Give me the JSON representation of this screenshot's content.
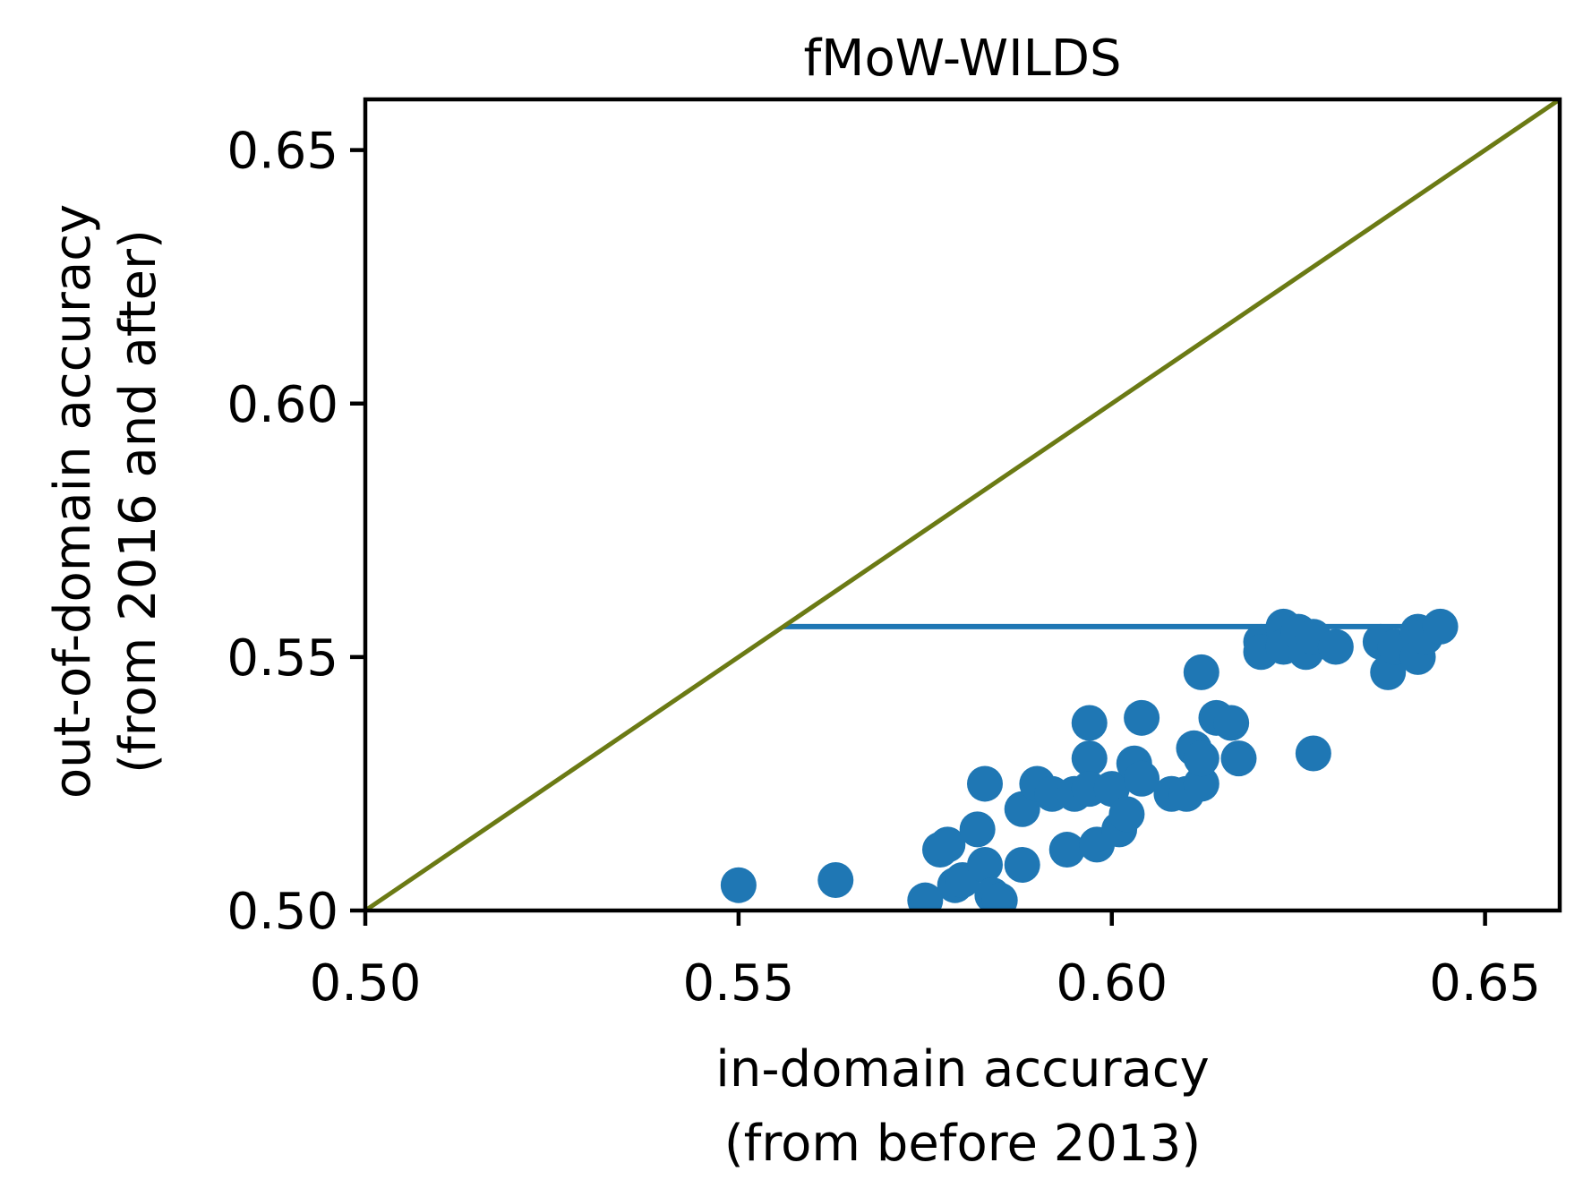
{
  "chart_data": {
    "type": "scatter",
    "title": "fMoW-WILDS",
    "xlabel": [
      "in-domain accuracy",
      "(from before 2013)"
    ],
    "ylabel": [
      "out-of-domain accuracy",
      "(from 2016 and after)"
    ],
    "xlim": [
      0.5,
      0.66
    ],
    "ylim": [
      0.5,
      0.66
    ],
    "xticks": [
      "0.50",
      "0.55",
      "0.60",
      "0.65"
    ],
    "yticks": [
      "0.50",
      "0.55",
      "0.60",
      "0.65"
    ],
    "grid": false,
    "colors": {
      "points": "#1f77b4",
      "diagonal": "#6b7a14",
      "gap_line": "#1f77b4"
    },
    "diagonal": {
      "x": [
        0.5,
        0.66
      ],
      "y": [
        0.5,
        0.66
      ]
    },
    "gap_line": {
      "x": [
        0.556,
        0.643
      ],
      "y": [
        0.556,
        0.556
      ]
    },
    "points": [
      {
        "x": 0.55,
        "y": 0.505
      },
      {
        "x": 0.563,
        "y": 0.506
      },
      {
        "x": 0.575,
        "y": 0.502
      },
      {
        "x": 0.577,
        "y": 0.512
      },
      {
        "x": 0.578,
        "y": 0.513
      },
      {
        "x": 0.579,
        "y": 0.505
      },
      {
        "x": 0.58,
        "y": 0.506
      },
      {
        "x": 0.582,
        "y": 0.516
      },
      {
        "x": 0.583,
        "y": 0.525
      },
      {
        "x": 0.583,
        "y": 0.509
      },
      {
        "x": 0.584,
        "y": 0.503
      },
      {
        "x": 0.585,
        "y": 0.502
      },
      {
        "x": 0.588,
        "y": 0.509
      },
      {
        "x": 0.588,
        "y": 0.52
      },
      {
        "x": 0.59,
        "y": 0.525
      },
      {
        "x": 0.592,
        "y": 0.523
      },
      {
        "x": 0.594,
        "y": 0.512
      },
      {
        "x": 0.595,
        "y": 0.523
      },
      {
        "x": 0.597,
        "y": 0.537
      },
      {
        "x": 0.597,
        "y": 0.53
      },
      {
        "x": 0.597,
        "y": 0.524
      },
      {
        "x": 0.598,
        "y": 0.513
      },
      {
        "x": 0.6,
        "y": 0.524
      },
      {
        "x": 0.601,
        "y": 0.516
      },
      {
        "x": 0.602,
        "y": 0.519
      },
      {
        "x": 0.603,
        "y": 0.529
      },
      {
        "x": 0.604,
        "y": 0.526
      },
      {
        "x": 0.604,
        "y": 0.538
      },
      {
        "x": 0.608,
        "y": 0.523
      },
      {
        "x": 0.61,
        "y": 0.523
      },
      {
        "x": 0.611,
        "y": 0.532
      },
      {
        "x": 0.612,
        "y": 0.525
      },
      {
        "x": 0.612,
        "y": 0.53
      },
      {
        "x": 0.612,
        "y": 0.547
      },
      {
        "x": 0.614,
        "y": 0.538
      },
      {
        "x": 0.616,
        "y": 0.537
      },
      {
        "x": 0.617,
        "y": 0.53
      },
      {
        "x": 0.62,
        "y": 0.553
      },
      {
        "x": 0.62,
        "y": 0.551
      },
      {
        "x": 0.623,
        "y": 0.556
      },
      {
        "x": 0.623,
        "y": 0.552
      },
      {
        "x": 0.625,
        "y": 0.555
      },
      {
        "x": 0.626,
        "y": 0.551
      },
      {
        "x": 0.627,
        "y": 0.531
      },
      {
        "x": 0.627,
        "y": 0.554
      },
      {
        "x": 0.63,
        "y": 0.552
      },
      {
        "x": 0.636,
        "y": 0.553
      },
      {
        "x": 0.637,
        "y": 0.547
      },
      {
        "x": 0.638,
        "y": 0.552
      },
      {
        "x": 0.641,
        "y": 0.555
      },
      {
        "x": 0.641,
        "y": 0.55
      },
      {
        "x": 0.642,
        "y": 0.554
      },
      {
        "x": 0.644,
        "y": 0.556
      }
    ]
  }
}
